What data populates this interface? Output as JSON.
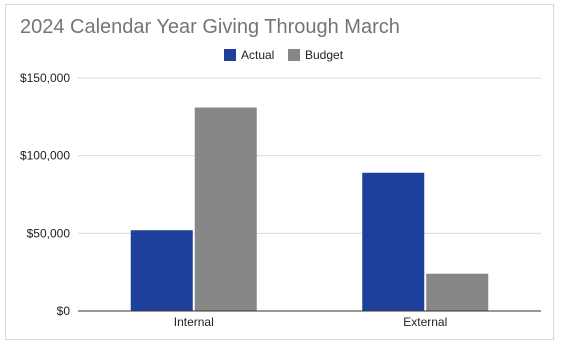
{
  "chart_data": {
    "type": "bar",
    "title": "2024 Calendar Year Giving Through March",
    "categories": [
      "Internal",
      "External"
    ],
    "series": [
      {
        "name": "Actual",
        "values": [
          52000,
          89000
        ],
        "color": "#1e3f9a"
      },
      {
        "name": "Budget",
        "values": [
          131000,
          24000
        ],
        "color": "#878787"
      }
    ],
    "xlabel": "",
    "ylabel": "",
    "ylim": [
      0,
      150000
    ],
    "yticks": [
      0,
      50000,
      100000,
      150000
    ],
    "ytick_labels": [
      "$0",
      "$50,000",
      "$100,000",
      "$150,000"
    ],
    "legend_position": "top-center",
    "grid": true
  }
}
